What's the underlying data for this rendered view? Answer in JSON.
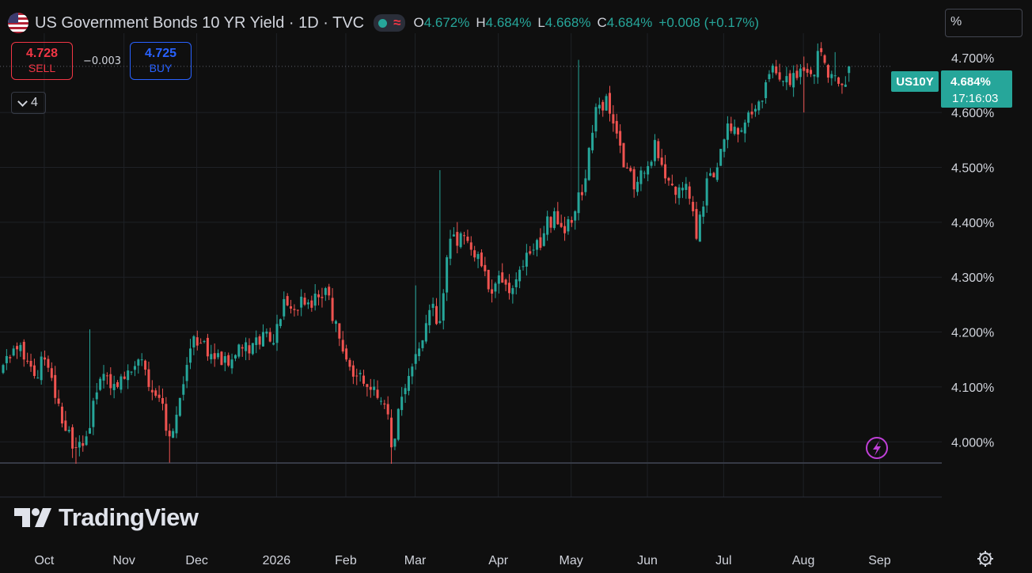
{
  "header": {
    "title": "US Government Bonds 10 YR Yield · 1D · TVC",
    "ohlc": [
      {
        "k": "O",
        "v": "4.672%"
      },
      {
        "k": "H",
        "v": "4.684%"
      },
      {
        "k": "L",
        "v": "4.668%"
      },
      {
        "k": "C",
        "v": "4.684%"
      }
    ],
    "change": "+0.008 (+0.17%)"
  },
  "trade": {
    "sell_price": "4.728",
    "sell_label": "SELL",
    "spread": "−0.003",
    "buy_price": "4.725",
    "buy_label": "BUY"
  },
  "indicators_count": "4",
  "scale_unit": "%",
  "brand": "TradingView",
  "icons": [
    "us-flag-icon",
    "market-status-icon",
    "chevron-down-icon",
    "lightning-icon",
    "settings-gear-icon",
    "tradingview-logo-icon"
  ],
  "colors": {
    "up": "#26a69a",
    "down": "#ef5350",
    "sell": "#f23645",
    "buy": "#2962ff",
    "background": "#0f0f0f",
    "grid": "#1e2126",
    "lightning": "#c040d8"
  },
  "chart_data": {
    "type": "candlestick",
    "symbol_tag": "US10Y",
    "last_price": "4.684%",
    "countdown": "17:16:03",
    "ylim": [
      3.96,
      4.73
    ],
    "yticks": [
      4.0,
      4.1,
      4.2,
      4.3,
      4.4,
      4.5,
      4.6
    ],
    "ytick_labels": [
      "4.000%",
      "4.100%",
      "4.200%",
      "4.300%",
      "4.400%",
      "4.500%",
      "4.600%"
    ],
    "partially_hidden_tick": "4.700%",
    "xticks": [
      {
        "label": "Oct",
        "bar": 5
      },
      {
        "label": "Nov",
        "bar": 28
      },
      {
        "label": "Dec",
        "bar": 49
      },
      {
        "label": "2026",
        "bar": 72
      },
      {
        "label": "Feb",
        "bar": 92
      },
      {
        "label": "Mar",
        "bar": 112
      },
      {
        "label": "Apr",
        "bar": 136
      },
      {
        "label": "May",
        "bar": 157
      },
      {
        "label": "Jun",
        "bar": 179
      },
      {
        "label": "Jul",
        "bar": 201
      },
      {
        "label": "Aug",
        "bar": 224
      },
      {
        "label": "Sep",
        "bar": 246
      }
    ],
    "anchors": [
      [
        0,
        4.14
      ],
      [
        3,
        4.17
      ],
      [
        6,
        4.15
      ],
      [
        9,
        4.12
      ],
      [
        12,
        4.15
      ],
      [
        15,
        4.08
      ],
      [
        18,
        4.02
      ],
      [
        21,
        3.99
      ],
      [
        24,
        4.01
      ],
      [
        27,
        4.09
      ],
      [
        30,
        4.12
      ],
      [
        33,
        4.1
      ],
      [
        36,
        4.13
      ],
      [
        39,
        4.15
      ],
      [
        42,
        4.1
      ],
      [
        45,
        4.08
      ],
      [
        48,
        4.01
      ],
      [
        51,
        4.08
      ],
      [
        54,
        4.17
      ],
      [
        57,
        4.18
      ],
      [
        60,
        4.16
      ],
      [
        63,
        4.14
      ],
      [
        66,
        4.15
      ],
      [
        69,
        4.17
      ],
      [
        72,
        4.18
      ],
      [
        75,
        4.2
      ],
      [
        78,
        4.18
      ],
      [
        81,
        4.26
      ],
      [
        84,
        4.24
      ],
      [
        87,
        4.25
      ],
      [
        90,
        4.27
      ],
      [
        93,
        4.28
      ],
      [
        96,
        4.22
      ],
      [
        99,
        4.15
      ],
      [
        102,
        4.12
      ],
      [
        105,
        4.1
      ],
      [
        108,
        4.08
      ],
      [
        111,
        4.05
      ],
      [
        112,
        3.99
      ],
      [
        114,
        4.06
      ],
      [
        117,
        4.12
      ],
      [
        120,
        4.17
      ],
      [
        123,
        4.24
      ],
      [
        126,
        4.22
      ],
      [
        129,
        4.37
      ],
      [
        132,
        4.38
      ],
      [
        135,
        4.35
      ],
      [
        138,
        4.32
      ],
      [
        141,
        4.27
      ],
      [
        144,
        4.29
      ],
      [
        147,
        4.28
      ],
      [
        150,
        4.32
      ],
      [
        153,
        4.35
      ],
      [
        156,
        4.38
      ],
      [
        159,
        4.42
      ],
      [
        162,
        4.38
      ],
      [
        165,
        4.42
      ],
      [
        168,
        4.48
      ],
      [
        171,
        4.61
      ],
      [
        174,
        4.63
      ],
      [
        176,
        4.58
      ],
      [
        179,
        4.5
      ],
      [
        182,
        4.46
      ],
      [
        185,
        4.49
      ],
      [
        188,
        4.55
      ],
      [
        191,
        4.48
      ],
      [
        194,
        4.45
      ],
      [
        197,
        4.47
      ],
      [
        200,
        4.37
      ],
      [
        203,
        4.48
      ],
      [
        206,
        4.5
      ],
      [
        209,
        4.58
      ],
      [
        212,
        4.56
      ],
      [
        215,
        4.6
      ],
      [
        218,
        4.62
      ],
      [
        221,
        4.67
      ],
      [
        224,
        4.66
      ],
      [
        227,
        4.65
      ],
      [
        230,
        4.68
      ],
      [
        233,
        4.67
      ],
      [
        236,
        4.71
      ],
      [
        239,
        4.67
      ],
      [
        242,
        4.65
      ],
      [
        244,
        4.684
      ]
    ],
    "wick_highs": [
      [
        25,
        4.205
      ],
      [
        95,
        4.28
      ],
      [
        119,
        4.285
      ],
      [
        126,
        4.495
      ],
      [
        166,
        4.696
      ],
      [
        231,
        4.702
      ],
      [
        240,
        4.71
      ]
    ],
    "wick_lows": [
      [
        21,
        3.955
      ],
      [
        48,
        3.962
      ],
      [
        112,
        3.948
      ],
      [
        201,
        4.365
      ],
      [
        231,
        4.6
      ]
    ]
  }
}
